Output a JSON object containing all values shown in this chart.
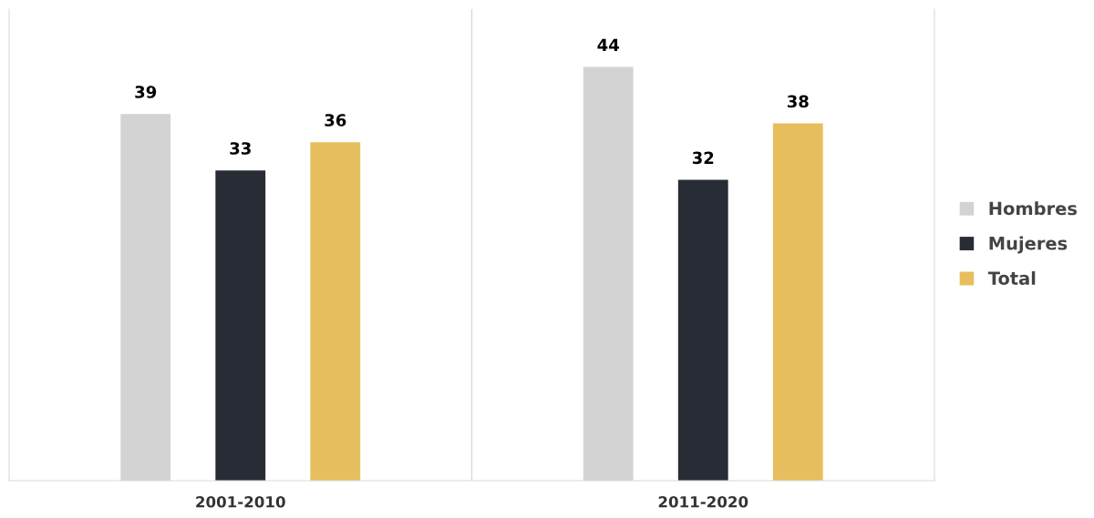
{
  "chart_data": {
    "type": "bar",
    "categories": [
      "2001-2010",
      "2011-2020"
    ],
    "series": [
      {
        "name": "Hombres",
        "color": "#d3d3d3",
        "values": [
          39,
          44
        ]
      },
      {
        "name": "Mujeres",
        "color": "#282c34",
        "values": [
          33,
          32
        ]
      },
      {
        "name": "Total",
        "color": "#e6be5e",
        "values": [
          36,
          38
        ]
      }
    ],
    "data_labels": true,
    "legend": "right",
    "grid": false
  }
}
